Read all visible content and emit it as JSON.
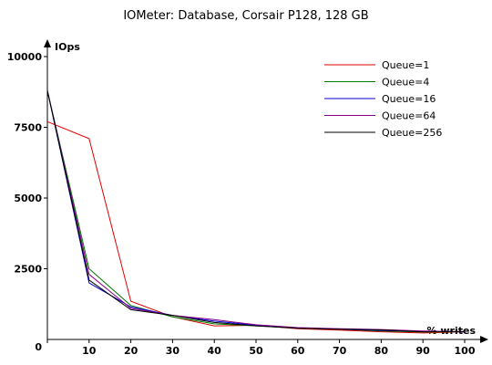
{
  "chart_data": {
    "type": "line",
    "title": "IOMeter: Database, Corsair P128, 128 GB",
    "xlabel": "% writes",
    "ylabel": "IOps",
    "x": [
      0,
      10,
      20,
      30,
      40,
      50,
      60,
      70,
      80,
      90,
      100
    ],
    "xlim": [
      0,
      100
    ],
    "ylim": [
      0,
      10000
    ],
    "x_ticks": [
      0,
      10,
      20,
      30,
      40,
      50,
      60,
      70,
      80,
      90,
      100
    ],
    "y_ticks": [
      2500,
      5000,
      7500,
      10000
    ],
    "origin_label": "0",
    "grid": false,
    "legend_position": "top-right",
    "series": [
      {
        "name": "Queue=1",
        "color": "#e00000",
        "values": [
          7700,
          7100,
          1350,
          800,
          480,
          500,
          380,
          330,
          270,
          230,
          270
        ]
      },
      {
        "name": "Queue=4",
        "color": "#007a00",
        "values": [
          8800,
          2500,
          1200,
          800,
          550,
          480,
          400,
          360,
          300,
          260,
          270
        ]
      },
      {
        "name": "Queue=16",
        "color": "#0000d0",
        "values": [
          8800,
          2000,
          1150,
          850,
          650,
          500,
          400,
          360,
          320,
          280,
          270
        ]
      },
      {
        "name": "Queue=64",
        "color": "#8a008a",
        "values": [
          8800,
          2300,
          1100,
          850,
          700,
          520,
          420,
          380,
          350,
          300,
          270
        ]
      },
      {
        "name": "Queue=256",
        "color": "#000000",
        "values": [
          8800,
          2100,
          1050,
          850,
          600,
          480,
          400,
          360,
          340,
          270,
          280
        ]
      }
    ]
  }
}
